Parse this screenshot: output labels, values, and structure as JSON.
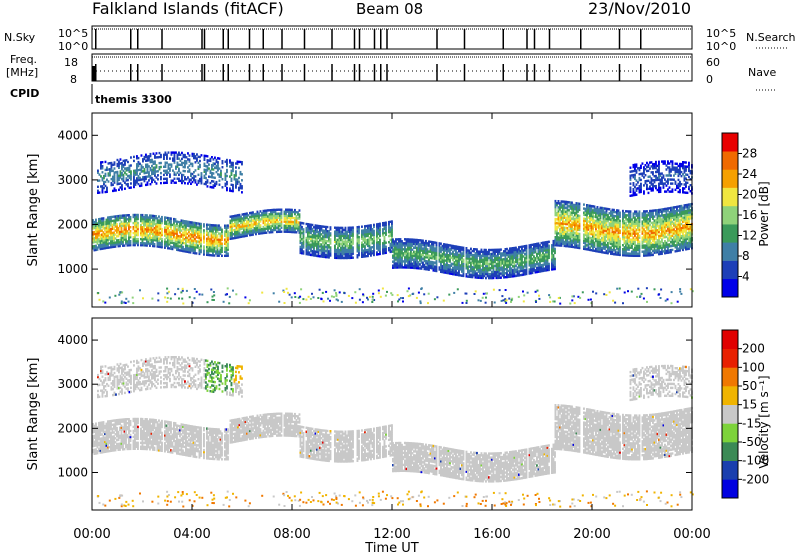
{
  "header": {
    "station": "Falkland Islands (fitACF)",
    "beam": "Beam 08",
    "date": "23/Nov/2010"
  },
  "status": {
    "nsky_label": "N.Sky",
    "nsky_ticks": [
      "10^5",
      "10^0"
    ],
    "nsearch_label": "N.Search",
    "nsearch_ticks": [
      "10^5",
      "10^0"
    ],
    "freq_label": "Freq.",
    "freq_unit": "[MHz]",
    "freq_ticks": [
      "18",
      "8"
    ],
    "nave_label": "Nave",
    "nave_ticks": [
      "60",
      "0"
    ],
    "cpid_label": "CPID",
    "cpid_value": "themis 3300",
    "break_hours": [
      0.15,
      1.55,
      1.83,
      2.8,
      4.4,
      4.5,
      5.25,
      5.45,
      6.3,
      6.85,
      7.6,
      8.5,
      9.6,
      10.5,
      10.7,
      11.3,
      11.55,
      11.8,
      13.8,
      14.9,
      16.45,
      17.4,
      17.7,
      18.3,
      19.55,
      21.1,
      21.95
    ]
  },
  "chart_data": [
    {
      "type": "heatmap",
      "panel": "power",
      "ylabel": "Slant Range [km]",
      "xlabel": "",
      "xlim": [
        0,
        24
      ],
      "ylim": [
        150,
        4500
      ],
      "yticks": [
        "1000",
        "2000",
        "3000",
        "4000"
      ],
      "colorbar": {
        "label": "Power [dB]",
        "ticks": [
          "28",
          "24",
          "20",
          "16",
          "12",
          "8",
          "4"
        ],
        "colors": [
          "#0000e8",
          "#1d3fb8",
          "#3f7fa6",
          "#3a9a5a",
          "#8fd27a",
          "#f0e640",
          "#f5a000",
          "#f06a00",
          "#e80000"
        ]
      },
      "bands": [
        {
          "start": 0.0,
          "end": 5.5,
          "range": [
            1400,
            2100
          ],
          "peak": 27
        },
        {
          "start": 5.5,
          "end": 8.3,
          "range": [
            1700,
            2200
          ],
          "peak": 24
        },
        {
          "start": 8.3,
          "end": 12.0,
          "range": [
            1350,
            2050
          ],
          "peak": 17
        },
        {
          "start": 12.0,
          "end": 18.5,
          "range": [
            900,
            1550
          ],
          "peak": 16
        },
        {
          "start": 18.5,
          "end": 24.0,
          "range": [
            1400,
            2400
          ],
          "peak": 26
        },
        {
          "start": 0.2,
          "end": 6.0,
          "range": [
            2800,
            3500
          ],
          "peak": 12
        },
        {
          "start": 21.5,
          "end": 24.0,
          "range": [
            2600,
            3300
          ],
          "peak": 8
        }
      ]
    },
    {
      "type": "heatmap",
      "panel": "velocity",
      "ylabel": "Slant Range [km]",
      "xlabel": "Time UT",
      "xlim": [
        0,
        24
      ],
      "ylim": [
        150,
        4500
      ],
      "xticks": [
        "00:00",
        "04:00",
        "08:00",
        "12:00",
        "16:00",
        "20:00",
        "00:00"
      ],
      "yticks": [
        "1000",
        "2000",
        "3000",
        "4000"
      ],
      "colorbar": {
        "label": "Velocity [m s⁻¹]",
        "ticks": [
          "200",
          "100",
          "50",
          "15",
          "-15",
          "-50",
          "-100",
          "-200"
        ],
        "colors": [
          "#0000e0",
          "#1a3fae",
          "#3b8a55",
          "#7dd33a",
          "#c8c8c8",
          "#f0b400",
          "#f07800",
          "#e82000",
          "#e00000"
        ]
      },
      "ground_scatter": "#c8c8c8"
    }
  ]
}
